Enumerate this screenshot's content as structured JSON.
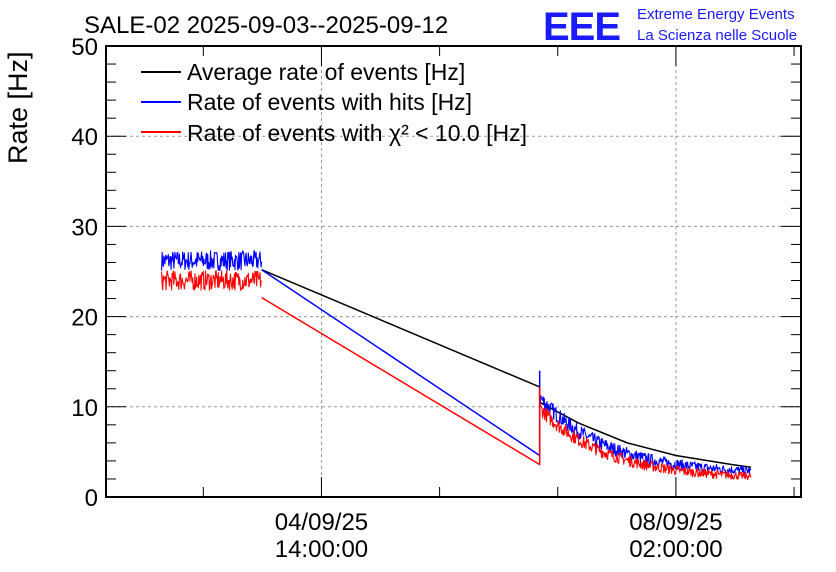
{
  "chart_data": {
    "type": "line",
    "title": "SALE-02 2025-09-03--2025-09-12",
    "ylabel": "Rate [Hz]",
    "xlabel": "",
    "ylim": [
      0,
      50
    ],
    "xlim": [
      0,
      100
    ],
    "y_ticks": [
      0,
      10,
      20,
      30,
      40,
      50
    ],
    "x_ticks": [
      {
        "x": 31,
        "date": "04/09/25",
        "time": "14:00:00"
      },
      {
        "x": 82,
        "date": "08/09/25",
        "time": "02:00:00"
      }
    ],
    "grid": true,
    "legend_position": "top-left",
    "legend_entries": [
      "Average rate of events [Hz]",
      "Rate of events with hits [Hz]",
      "Rate of events with χ² < 10.0 [Hz]"
    ],
    "series": [
      {
        "name": "Average rate of events [Hz]",
        "color": "#000000",
        "points": [
          [
            22.4,
            25.2
          ],
          [
            62.4,
            12.2
          ],
          [
            62.4,
            10.5
          ],
          [
            68,
            8.2
          ],
          [
            75,
            6.0
          ],
          [
            82,
            4.6
          ],
          [
            90,
            3.6
          ],
          [
            92.8,
            3.3
          ]
        ]
      },
      {
        "name": "Rate of events with hits [Hz]",
        "color": "#0000ff",
        "noisy_segments": [
          {
            "x_start": 8,
            "x_end": 22.4,
            "mean": 26.2,
            "amplitude": 1.1
          },
          {
            "x_start": 62.5,
            "x_end": 92.8,
            "start_mean": 11.0,
            "end_mean": 2.9,
            "amplitude": 0.9
          }
        ],
        "points": [
          [
            22.4,
            25.2
          ],
          [
            62.4,
            4.6
          ],
          [
            62.4,
            14.0
          ]
        ]
      },
      {
        "name": "Rate of events with χ² < 10.0 [Hz]",
        "color": "#ff0000",
        "noisy_segments": [
          {
            "x_start": 8,
            "x_end": 22.4,
            "mean": 24.0,
            "amplitude": 1.1
          },
          {
            "x_start": 62.5,
            "x_end": 92.8,
            "start_mean": 9.8,
            "end_mean": 2.3,
            "amplitude": 0.8
          }
        ],
        "points": [
          [
            22.4,
            22.1
          ],
          [
            62.4,
            3.6
          ],
          [
            62.4,
            12.2
          ]
        ]
      }
    ]
  },
  "logo": {
    "mark": "EEE",
    "line1": "Extreme Energy Events",
    "line2": "La Scienza nelle Scuole"
  },
  "colors": {
    "black": "#000000",
    "blue": "#0000ff",
    "red": "#ff0000",
    "logo": "#1a1aff",
    "grid": "#9a9a9a"
  }
}
